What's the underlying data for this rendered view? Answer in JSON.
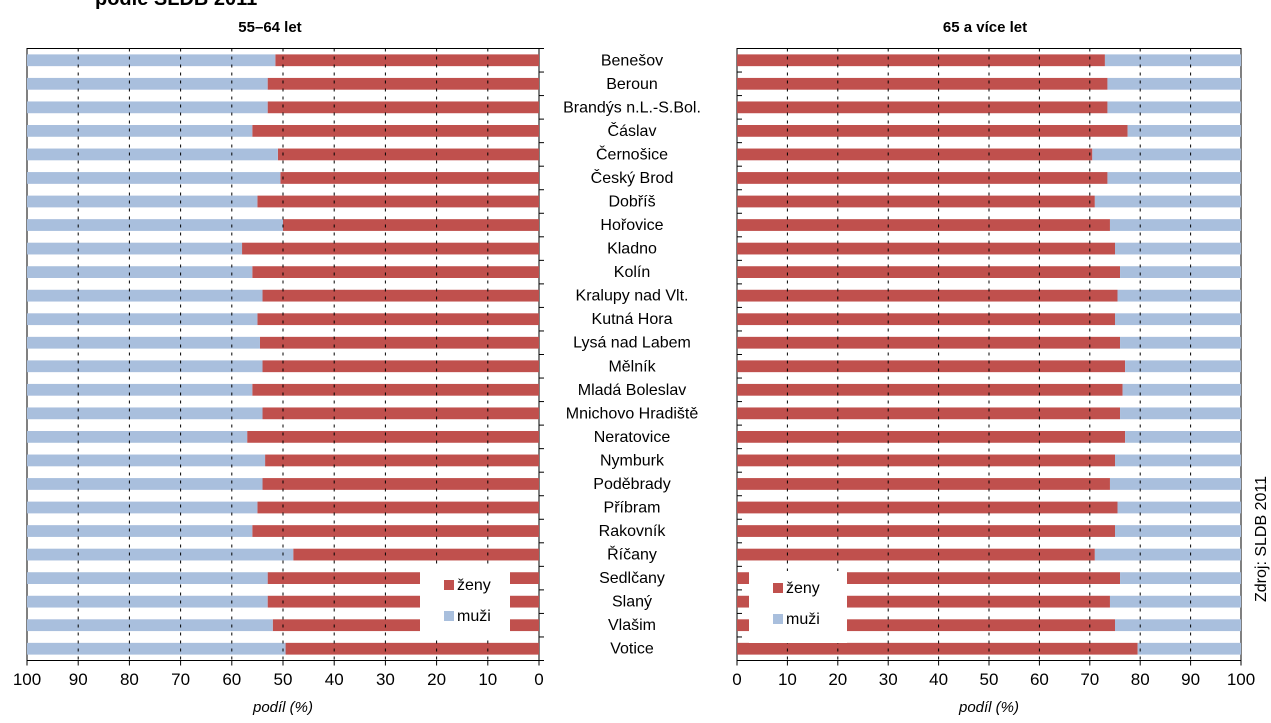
{
  "title": "podle SLDB 2011",
  "source_note": "Zdroj: SLDB 2011",
  "colors": {
    "zeny": "#c0504d",
    "muzi": "#a9bfdd",
    "grid": "#000000"
  },
  "chart_data": [
    {
      "type": "bar",
      "orientation": "horizontal-stacked",
      "x_direction": "reversed",
      "title": "55–64 let",
      "xlabel": "podíl (%)",
      "xlim": [
        0,
        100
      ],
      "xticks": [
        "100",
        "90",
        "80",
        "70",
        "60",
        "50",
        "40",
        "30",
        "20",
        "10",
        "0"
      ],
      "grid": true,
      "legend_position": "bottom-right",
      "categories": [
        "Benešov",
        "Beroun",
        "Brandýs n.L.-S.Bol.",
        "Čáslav",
        "Černošice",
        "Český Brod",
        "Dobříš",
        "Hořovice",
        "Kladno",
        "Kolín",
        "Kralupy nad Vlt.",
        "Kutná Hora",
        "Lysá nad Labem",
        "Mělník",
        "Mladá Boleslav",
        "Mnichovo Hradiště",
        "Neratovice",
        "Nymburk",
        "Poděbrady",
        "Příbram",
        "Rakovník",
        "Říčany",
        "Sedlčany",
        "Slaný",
        "Vlašim",
        "Votice"
      ],
      "series": [
        {
          "name": "ženy",
          "values": [
            51.5,
            53,
            53,
            56,
            51,
            50.5,
            55,
            50,
            58,
            56,
            54,
            55,
            54.5,
            54,
            56,
            54,
            57,
            53.5,
            54,
            55,
            56,
            48,
            53,
            53,
            52,
            49.5
          ]
        },
        {
          "name": "muži",
          "values": [
            48.5,
            47,
            47,
            44,
            49,
            49.5,
            45,
            50,
            42,
            44,
            46,
            45,
            45.5,
            46,
            44,
            46,
            43,
            46.5,
            46,
            45,
            44,
            52,
            47,
            47,
            48,
            50.5
          ]
        }
      ]
    },
    {
      "type": "bar",
      "orientation": "horizontal-stacked",
      "x_direction": "normal",
      "title": "65 a více let",
      "xlabel": "podíl (%)",
      "xlim": [
        0,
        100
      ],
      "xticks": [
        "0",
        "10",
        "20",
        "30",
        "40",
        "50",
        "60",
        "70",
        "80",
        "90",
        "100"
      ],
      "grid": true,
      "legend_position": "bottom-left",
      "categories": [
        "Benešov",
        "Beroun",
        "Brandýs n.L.-S.Bol.",
        "Čáslav",
        "Černošice",
        "Český Brod",
        "Dobříš",
        "Hořovice",
        "Kladno",
        "Kolín",
        "Kralupy nad Vlt.",
        "Kutná Hora",
        "Lysá nad Labem",
        "Mělník",
        "Mladá Boleslav",
        "Mnichovo Hradiště",
        "Neratovice",
        "Nymburk",
        "Poděbrady",
        "Příbram",
        "Rakovník",
        "Říčany",
        "Sedlčany",
        "Slaný",
        "Vlašim",
        "Votice"
      ],
      "series": [
        {
          "name": "ženy",
          "values": [
            73,
            73.5,
            73.5,
            77.5,
            70.5,
            73.5,
            71,
            74,
            75,
            76,
            75.5,
            75,
            76,
            77,
            76.5,
            76,
            77,
            75,
            74,
            75.5,
            75,
            71,
            76,
            74,
            75,
            79.5
          ]
        },
        {
          "name": "muži",
          "values": [
            27,
            26.5,
            26.5,
            22.5,
            29.5,
            26.5,
            29,
            26,
            25,
            24,
            24.5,
            25,
            24,
            23,
            23.5,
            24,
            23,
            25,
            26,
            24.5,
            25,
            29,
            24,
            26,
            25,
            20.5
          ]
        }
      ]
    }
  ]
}
